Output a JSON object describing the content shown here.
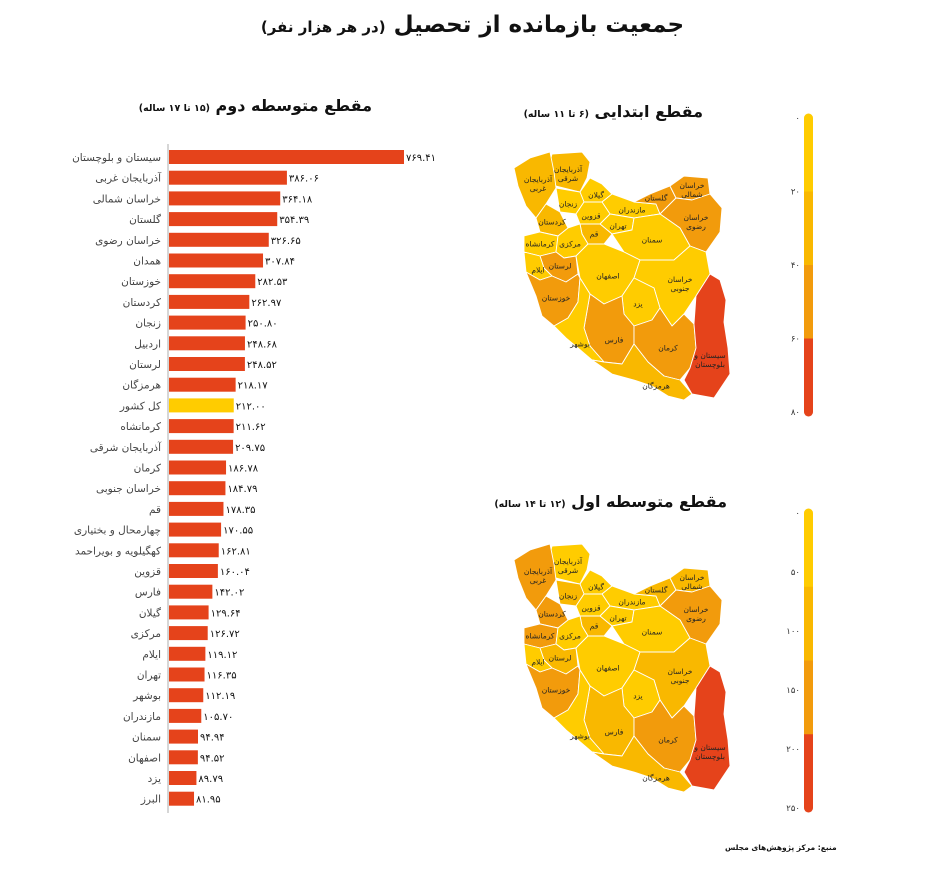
{
  "page": {
    "title": "جمعیت بازمانده از تحصیل",
    "title_unit": "(در هر هزار نفر)",
    "source": "منبع: مرکز پژوهش‌های مجلس"
  },
  "colors": {
    "bar": "#E5431B",
    "highlight": "#FFCC00",
    "scale": [
      "#FFCC00",
      "#F9B800",
      "#F29B0C",
      "#E5431B"
    ]
  },
  "chart_data": [
    {
      "type": "bar",
      "orientation": "horizontal",
      "title": "مقطع متوسطه دوم",
      "subtitle": "(۱۵ تا ۱۷ ساله)",
      "highlight_category": "کل کشور",
      "categories": [
        "سیستان و بلوچستان",
        "آذربایجان غربی",
        "خراسان شمالی",
        "گلستان",
        "خراسان رضوی",
        "همدان",
        "خوزستان",
        "کردستان",
        "زنجان",
        "اردبیل",
        "لرستان",
        "هرمزگان",
        "کل کشور",
        "کرمانشاه",
        "آذربایجان شرقی",
        "کرمان",
        "خراسان جنوبی",
        "قم",
        "چهارمحال و بختیاری",
        "کهگیلویه و بویراحمد",
        "قزوین",
        "فارس",
        "گیلان",
        "مرکزی",
        "ایلام",
        "تهران",
        "بوشهر",
        "مازندران",
        "سمنان",
        "اصفهان",
        "یزد",
        "البرز"
      ],
      "values": [
        769.41,
        386.06,
        364.18,
        354.39,
        326.65,
        307.84,
        282.53,
        262.97,
        250.8,
        248.68,
        248.52,
        218.17,
        212.0,
        211.62,
        209.75,
        186.78,
        184.79,
        178.35,
        170.55,
        162.81,
        160.04,
        142.02,
        129.64,
        126.72,
        119.12,
        116.35,
        112.19,
        105.7,
        94.94,
        94.52,
        89.79,
        81.95
      ],
      "value_labels": [
        "۷۶۹.۴۱",
        "۳۸۶.۰۶",
        "۳۶۴.۱۸",
        "۳۵۴.۳۹",
        "۳۲۶.۶۵",
        "۳۰۷.۸۴",
        "۲۸۲.۵۳",
        "۲۶۲.۹۷",
        "۲۵۰.۸۰",
        "۲۴۸.۶۸",
        "۲۴۸.۵۲",
        "۲۱۸.۱۷",
        "۲۱۲.۰۰",
        "۲۱۱.۶۲",
        "۲۰۹.۷۵",
        "۱۸۶.۷۸",
        "۱۸۴.۷۹",
        "۱۷۸.۳۵",
        "۱۷۰.۵۵",
        "۱۶۲.۸۱",
        "۱۶۰.۰۴",
        "۱۴۲.۰۲",
        "۱۲۹.۶۴",
        "۱۲۶.۷۲",
        "۱۱۹.۱۲",
        "۱۱۶.۳۵",
        "۱۱۲.۱۹",
        "۱۰۵.۷۰",
        "۹۴.۹۴",
        "۹۴.۵۲",
        "۸۹.۷۹",
        "۸۱.۹۵"
      ],
      "xlim": [
        0,
        800
      ]
    },
    {
      "type": "choropleth",
      "title": "مقطع ابتدایی",
      "subtitle": "(۶ تا ۱۱ ساله)",
      "scale_ticks": [
        "۰",
        "۲۰",
        "۴۰",
        "۶۰",
        "۸۰"
      ],
      "scale_range": [
        0,
        80
      ]
    },
    {
      "type": "choropleth",
      "title": "مقطع متوسطه اول",
      "subtitle": "(۱۲ تا ۱۴ ساله)",
      "scale_ticks": [
        "۰",
        "۵۰",
        "۱۰۰",
        "۱۵۰",
        "۲۰۰",
        "۲۵۰"
      ],
      "scale_range": [
        0,
        250
      ]
    }
  ],
  "map_provinces": [
    {
      "name": "آذربایجان شرقی",
      "primary": 1,
      "lower": 0
    },
    {
      "name": "آذربایجان غربی",
      "primary": 1,
      "lower": 2
    },
    {
      "name": "گیلان",
      "primary": 0,
      "lower": 0
    },
    {
      "name": "زنجان",
      "primary": 0,
      "lower": 1
    },
    {
      "name": "مازندران",
      "primary": 0,
      "lower": 0
    },
    {
      "name": "قزوین",
      "primary": 0,
      "lower": 0
    },
    {
      "name": "تهران",
      "primary": 0,
      "lower": 0
    },
    {
      "name": "کردستان",
      "primary": 1,
      "lower": 2
    },
    {
      "name": "گلستان",
      "primary": 2,
      "lower": 1
    },
    {
      "name": "خراسان شمالی",
      "primary": 2,
      "lower": 1
    },
    {
      "name": "خراسان رضوی",
      "primary": 2,
      "lower": 2
    },
    {
      "name": "کرمانشاه",
      "primary": 0,
      "lower": 2
    },
    {
      "name": "قم",
      "primary": 1,
      "lower": 1
    },
    {
      "name": "مرکزی",
      "primary": 0,
      "lower": 0
    },
    {
      "name": "سمنان",
      "primary": 0,
      "lower": 0
    },
    {
      "name": "لرستان",
      "primary": 2,
      "lower": 1
    },
    {
      "name": "ایلام",
      "primary": 0,
      "lower": 0
    },
    {
      "name": "اصفهان",
      "primary": 0,
      "lower": 0
    },
    {
      "name": "خراسان جنوبی",
      "primary": 0,
      "lower": 1
    },
    {
      "name": "خوزستان",
      "primary": 2,
      "lower": 2
    },
    {
      "name": "یزد",
      "primary": 0,
      "lower": 0
    },
    {
      "name": "فارس",
      "primary": 2,
      "lower": 1
    },
    {
      "name": "بوشهر",
      "primary": 0,
      "lower": 0
    },
    {
      "name": "کرمان",
      "primary": 2,
      "lower": 2
    },
    {
      "name": "سیستان و بلوچستان",
      "primary": 3,
      "lower": 3
    },
    {
      "name": "هرمزگان",
      "primary": 1,
      "lower": 1
    }
  ]
}
